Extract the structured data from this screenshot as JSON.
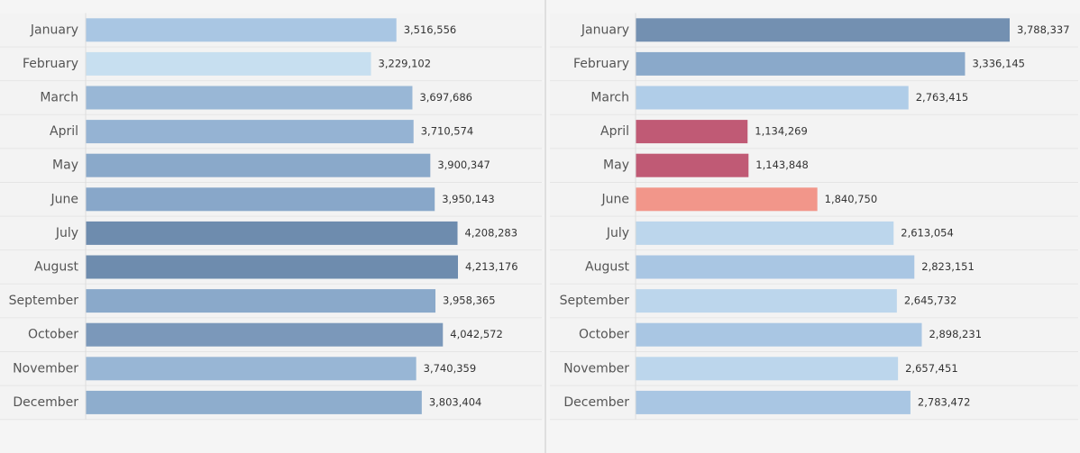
{
  "chart_data": [
    {
      "type": "bar",
      "orientation": "horizontal",
      "categories": [
        "January",
        "February",
        "March",
        "April",
        "May",
        "June",
        "July",
        "August",
        "September",
        "October",
        "November",
        "December"
      ],
      "values": [
        3516556,
        3229102,
        3697686,
        3710574,
        3900347,
        3950143,
        4208283,
        4213176,
        3958365,
        4042572,
        3740359,
        3803404
      ],
      "value_labels": [
        "3,516,556",
        "3,229,102",
        "3,697,686",
        "3,710,574",
        "3,900,347",
        "3,950,143",
        "4,208,283",
        "4,213,176",
        "3,958,365",
        "4,042,572",
        "3,740,359",
        "3,803,404"
      ],
      "colors": [
        "#a9c6e3",
        "#c7dff0",
        "#99b7d6",
        "#95b3d3",
        "#8aa9ca",
        "#88a7c9",
        "#6e8cae",
        "#6e8cae",
        "#8aa9ca",
        "#7b98ba",
        "#98b6d5",
        "#8eadcd"
      ]
    },
    {
      "type": "bar",
      "orientation": "horizontal",
      "categories": [
        "January",
        "February",
        "March",
        "April",
        "May",
        "June",
        "July",
        "August",
        "September",
        "October",
        "November",
        "December"
      ],
      "values": [
        3788337,
        3336145,
        2763415,
        1134269,
        1143848,
        1840750,
        2613054,
        2823151,
        2645732,
        2898231,
        2657451,
        2783472
      ],
      "value_labels": [
        "3,788,337",
        "3,336,145",
        "2,763,415",
        "1,134,269",
        "1,143,848",
        "1,840,750",
        "2,613,054",
        "2,823,151",
        "2,645,732",
        "2,898,231",
        "2,657,451",
        "2,783,472"
      ],
      "colors": [
        "#7390b1",
        "#8aa9ca",
        "#b0cde8",
        "#c05a75",
        "#c05a75",
        "#f2968a",
        "#bcd6ec",
        "#a9c6e3",
        "#bcd6ec",
        "#a9c6e3",
        "#bcd6ec",
        "#a9c6e3"
      ]
    }
  ]
}
